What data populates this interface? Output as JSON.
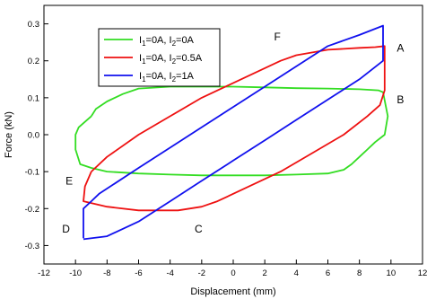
{
  "chart_data": {
    "type": "line",
    "title": "",
    "xlabel": "Displacement (mm)",
    "ylabel": "Force (kN)",
    "xlim": [
      -12,
      12
    ],
    "ylim": [
      -0.35,
      0.35
    ],
    "xticks": [
      -12,
      -10,
      -8,
      -6,
      -4,
      -2,
      0,
      2,
      4,
      6,
      8,
      10,
      12
    ],
    "yticks": [
      -0.3,
      -0.2,
      -0.1,
      0.0,
      0.1,
      0.2,
      0.3
    ],
    "ytick_labels": [
      "-0.3",
      "-0.2",
      "-0.1",
      "0.0",
      "0.1",
      "0.2",
      "0.3"
    ],
    "grid": false,
    "legend_position": "upper-left",
    "series": [
      {
        "legend": {
          "pre": "I",
          "sub1": "1",
          "mid": "=0A, I",
          "sub2": "2",
          "post": "=0A"
        },
        "color": "#33dd22",
        "points": [
          [
            -9.0,
            0.05
          ],
          [
            -8.7,
            0.07
          ],
          [
            -8.0,
            0.09
          ],
          [
            -7.0,
            0.11
          ],
          [
            -6.0,
            0.125
          ],
          [
            -4.0,
            0.13
          ],
          [
            -2.0,
            0.13
          ],
          [
            0,
            0.13
          ],
          [
            2.0,
            0.128
          ],
          [
            4.0,
            0.126
          ],
          [
            6.0,
            0.125
          ],
          [
            8.0,
            0.123
          ],
          [
            9.2,
            0.12
          ],
          [
            9.5,
            0.115
          ],
          [
            9.8,
            0.05
          ],
          [
            9.6,
            0.0
          ],
          [
            9.0,
            -0.02
          ],
          [
            8.5,
            -0.04
          ],
          [
            8.0,
            -0.06
          ],
          [
            7.5,
            -0.08
          ],
          [
            7.0,
            -0.095
          ],
          [
            6.0,
            -0.105
          ],
          [
            4.0,
            -0.108
          ],
          [
            2.0,
            -0.11
          ],
          [
            0,
            -0.11
          ],
          [
            -2.0,
            -0.11
          ],
          [
            -4.0,
            -0.108
          ],
          [
            -6.0,
            -0.105
          ],
          [
            -8.0,
            -0.1
          ],
          [
            -9.0,
            -0.09
          ],
          [
            -9.7,
            -0.08
          ],
          [
            -10.0,
            -0.04
          ],
          [
            -10.0,
            0.0
          ],
          [
            -9.8,
            0.02
          ],
          [
            -9.0,
            0.05
          ]
        ]
      },
      {
        "legend": {
          "pre": "I",
          "sub1": "1",
          "mid": "=0A, I",
          "sub2": "2",
          "post": "=0.5A"
        },
        "color": "#ee1111",
        "points": [
          [
            -9.0,
            -0.1
          ],
          [
            -8.0,
            -0.06
          ],
          [
            -6.0,
            0.0
          ],
          [
            -4.0,
            0.05
          ],
          [
            -2.0,
            0.1
          ],
          [
            0,
            0.14
          ],
          [
            2.0,
            0.18
          ],
          [
            3.0,
            0.2
          ],
          [
            4.0,
            0.215
          ],
          [
            6.0,
            0.23
          ],
          [
            8.0,
            0.235
          ],
          [
            9.0,
            0.237
          ],
          [
            9.6,
            0.24
          ],
          [
            9.6,
            0.12
          ],
          [
            9.3,
            0.08
          ],
          [
            8.5,
            0.05
          ],
          [
            7.0,
            0.0
          ],
          [
            5.0,
            -0.05
          ],
          [
            3.0,
            -0.1
          ],
          [
            1.0,
            -0.14
          ],
          [
            -1.0,
            -0.18
          ],
          [
            -2.0,
            -0.195
          ],
          [
            -3.5,
            -0.205
          ],
          [
            -6.0,
            -0.205
          ],
          [
            -8.0,
            -0.195
          ],
          [
            -9.5,
            -0.18
          ],
          [
            -9.4,
            -0.14
          ],
          [
            -9.0,
            -0.1
          ]
        ]
      },
      {
        "legend": {
          "pre": "I",
          "sub1": "1",
          "mid": "=0A, I",
          "sub2": "2",
          "post": "=1A"
        },
        "color": "#1111ee",
        "points": [
          [
            -9.5,
            -0.28
          ],
          [
            -9.5,
            -0.2
          ],
          [
            -9.0,
            -0.18
          ],
          [
            -8.5,
            -0.16
          ],
          [
            -6.0,
            -0.09
          ],
          [
            -4.0,
            -0.035
          ],
          [
            -2.0,
            0.02
          ],
          [
            0,
            0.075
          ],
          [
            2.0,
            0.13
          ],
          [
            4.0,
            0.185
          ],
          [
            6.0,
            0.24
          ],
          [
            8.0,
            0.27
          ],
          [
            9.5,
            0.295
          ],
          [
            9.5,
            0.2
          ],
          [
            8.0,
            0.15
          ],
          [
            6.0,
            0.095
          ],
          [
            4.0,
            0.04
          ],
          [
            2.0,
            -0.015
          ],
          [
            0,
            -0.07
          ],
          [
            -2.0,
            -0.125
          ],
          [
            -4.0,
            -0.18
          ],
          [
            -6.0,
            -0.235
          ],
          [
            -8.0,
            -0.275
          ],
          [
            -9.5,
            -0.283
          ]
        ]
      }
    ],
    "annotations": [
      {
        "label": "A",
        "x": 10.6,
        "y": 0.235
      },
      {
        "label": "B",
        "x": 10.6,
        "y": 0.095
      },
      {
        "label": "C",
        "x": -2.2,
        "y": -0.255
      },
      {
        "label": "D",
        "x": -10.6,
        "y": -0.255
      },
      {
        "label": "E",
        "x": -10.4,
        "y": -0.125
      },
      {
        "label": "F",
        "x": 2.8,
        "y": 0.265
      }
    ]
  }
}
